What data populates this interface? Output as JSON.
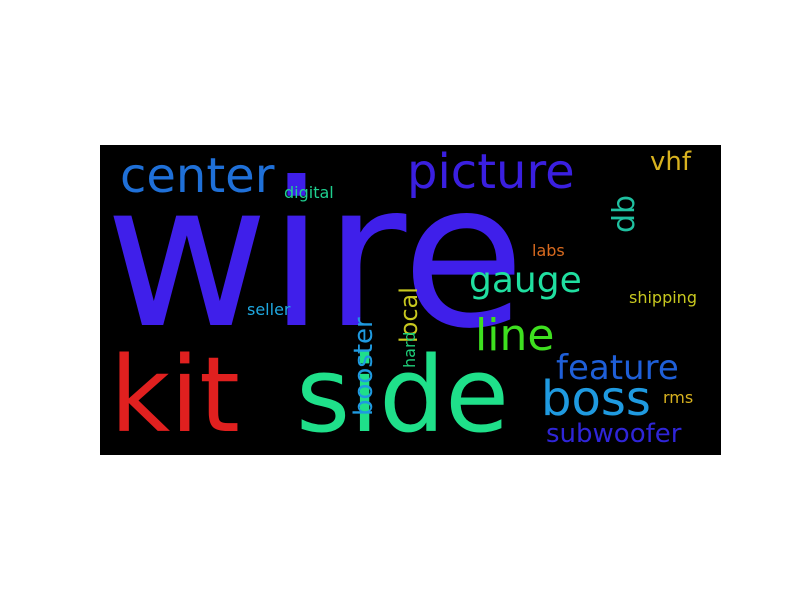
{
  "wordcloud": {
    "background": "#000000",
    "words": [
      {
        "text": "wire",
        "color": "#3f1fea"
      },
      {
        "text": "kit",
        "color": "#e0201f"
      },
      {
        "text": "side",
        "color": "#1fe08a"
      },
      {
        "text": "center",
        "color": "#1f70d8"
      },
      {
        "text": "picture",
        "color": "#3a1fe0"
      },
      {
        "text": "boss",
        "color": "#1f9ae0"
      },
      {
        "text": "line",
        "color": "#3ee01f"
      },
      {
        "text": "gauge",
        "color": "#20dfa0"
      },
      {
        "text": "feature",
        "color": "#1f5fd8"
      },
      {
        "text": "subwoofer",
        "color": "#2f25d8"
      },
      {
        "text": "vhf",
        "color": "#d8b21f"
      },
      {
        "text": "db",
        "color": "#1fc0a0"
      },
      {
        "text": "booster",
        "color": "#1f9ae0"
      },
      {
        "text": "local",
        "color": "#c8c81f"
      },
      {
        "text": "digital",
        "color": "#1fd090"
      },
      {
        "text": "labs",
        "color": "#d86a1f"
      },
      {
        "text": "shipping",
        "color": "#c8c81f"
      },
      {
        "text": "seller",
        "color": "#1fa8e0"
      },
      {
        "text": "hard",
        "color": "#1fd07a"
      },
      {
        "text": "rms",
        "color": "#d8b21f"
      }
    ]
  }
}
